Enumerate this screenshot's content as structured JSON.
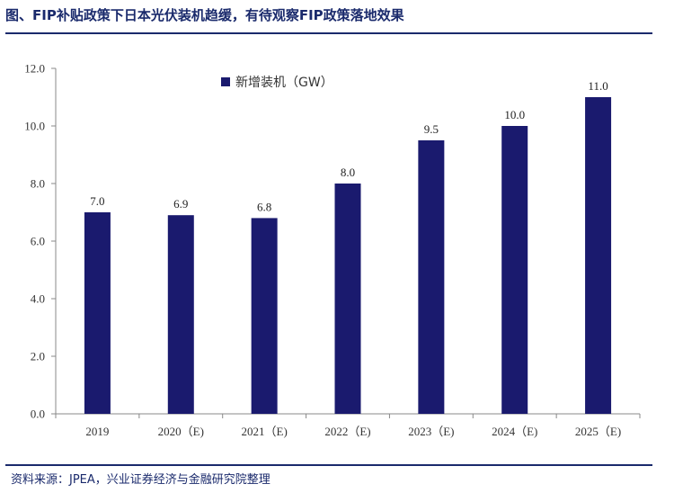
{
  "figure": {
    "title": "图、FIP补贴政策下日本光伏装机趋缓，有待观察FIP政策落地效果",
    "source": "资料来源：JPEA，兴业证券经济与金融研究院整理"
  },
  "colors": {
    "bar": "#1a1a6e",
    "title": "#1a2a6c",
    "axis": "#888888"
  },
  "chart_data": {
    "type": "bar",
    "categories": [
      "2019",
      "2020（E)",
      "2021（E)",
      "2022（E)",
      "2023（E)",
      "2024（E)",
      "2025（E)"
    ],
    "series": [
      {
        "name": "新增装机（GW）",
        "values": [
          7.0,
          6.9,
          6.8,
          8.0,
          9.5,
          10.0,
          11.0
        ]
      }
    ],
    "data_labels": [
      "7.0",
      "6.9",
      "6.8",
      "8.0",
      "9.5",
      "10.0",
      "11.0"
    ],
    "ylim": [
      0,
      12
    ],
    "yticks": [
      0,
      2,
      4,
      6,
      8,
      10,
      12
    ],
    "ytick_labels": [
      "0.0",
      "2.0",
      "4.0",
      "6.0",
      "8.0",
      "10.0",
      "12.0"
    ],
    "xlabel": "",
    "ylabel": "",
    "legend_position": "top-left",
    "grid": false
  }
}
